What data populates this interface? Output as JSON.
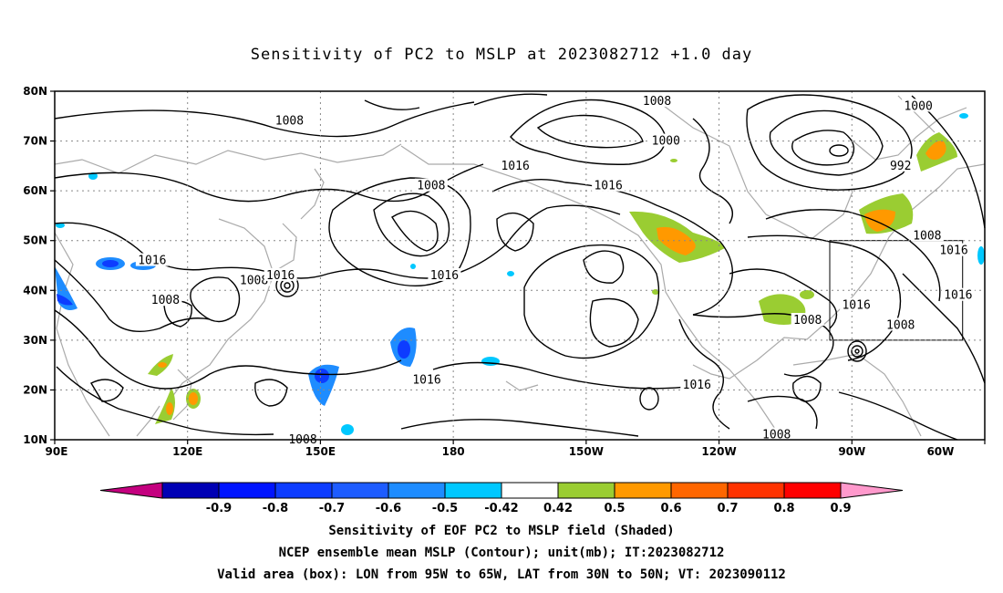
{
  "title": "Sensitivity of PC2 to MSLP at 2023082712 +1.0 day",
  "map": {
    "lat_labels": [
      "80N",
      "70N",
      "60N",
      "50N",
      "40N",
      "30N",
      "20N",
      "10N"
    ],
    "lon_labels": [
      "90E",
      "120E",
      "150E",
      "180",
      "150W",
      "120W",
      "90W",
      "60W"
    ],
    "contour_labels": [
      {
        "text": "1008",
        "lon": 115,
        "lat": 38
      },
      {
        "text": "1016",
        "lon": 112,
        "lat": 46
      },
      {
        "text": "1008",
        "lon": 135,
        "lat": 42
      },
      {
        "text": "1016",
        "lon": 141,
        "lat": 43
      },
      {
        "text": "1008",
        "lon": 143,
        "lat": 74
      },
      {
        "text": "1008",
        "lon": 175,
        "lat": 61
      },
      {
        "text": "1016",
        "lon": 178,
        "lat": 43
      },
      {
        "text": "1016",
        "lon": 174,
        "lat": 22
      },
      {
        "text": "1008",
        "lon": 146,
        "lat": 10
      },
      {
        "text": "1016",
        "lon": 194,
        "lat": 65
      },
      {
        "text": "1016",
        "lon": 215,
        "lat": 61
      },
      {
        "text": "1008",
        "lon": 226,
        "lat": 78
      },
      {
        "text": "1000",
        "lon": 228,
        "lat": 70
      },
      {
        "text": "1016",
        "lon": 235,
        "lat": 21
      },
      {
        "text": "1008",
        "lon": 253,
        "lat": 11
      },
      {
        "text": "1008",
        "lon": 260,
        "lat": 34
      },
      {
        "text": "1016",
        "lon": 271,
        "lat": 37
      },
      {
        "text": "1008",
        "lon": 281,
        "lat": 33
      },
      {
        "text": "1000",
        "lon": 285,
        "lat": 77
      },
      {
        "text": "992",
        "lon": 281,
        "lat": 65
      },
      {
        "text": "1008",
        "lon": 287,
        "lat": 51
      },
      {
        "text": "1016",
        "lon": 293,
        "lat": 48
      },
      {
        "text": "1016",
        "lon": 294,
        "lat": 39
      }
    ],
    "valid_box": {
      "lon_min": 265,
      "lon_max": 295,
      "lat_min": 30,
      "lat_max": 50
    }
  },
  "colorbar": {
    "labels": [
      "-0.9",
      "-0.8",
      "-0.7",
      "-0.6",
      "-0.5",
      "-0.42",
      "0.42",
      "0.5",
      "0.6",
      "0.7",
      "0.8",
      "0.9"
    ],
    "colors": [
      "#c4007f",
      "#0000b4",
      "#0014ff",
      "#0d3cff",
      "#1e5cff",
      "#1e8cff",
      "#00c8ff",
      "#ffffff",
      "#9acd32",
      "#ff9900",
      "#ff6600",
      "#ff3300",
      "#ff0000",
      "#ff99cc"
    ]
  },
  "captions": [
    "Sensitivity of EOF PC2 to MSLP field (Shaded)",
    "NCEP ensemble mean MSLP (Contour); unit(mb); IT:2023082712",
    "Valid area (box): LON from 95W to 65W, LAT from 30N to 50N; VT: 2023090112"
  ]
}
